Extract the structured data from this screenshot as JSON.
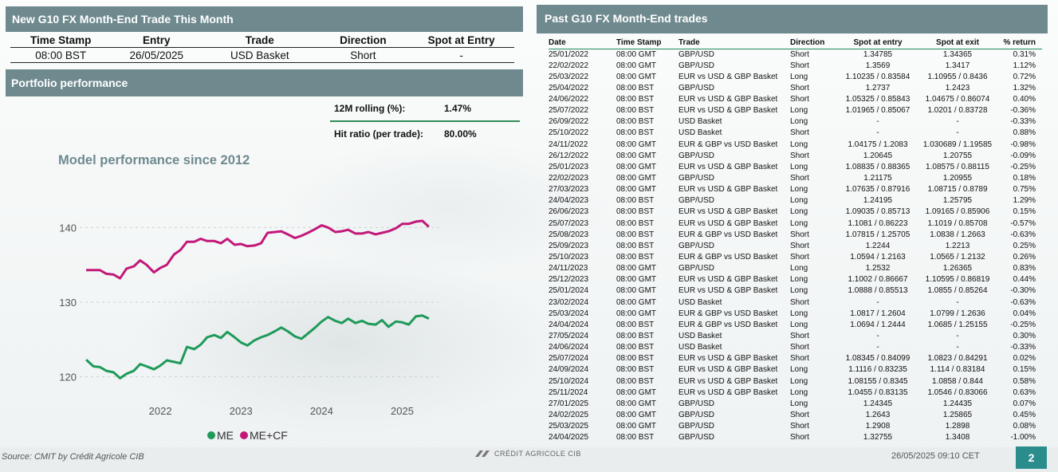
{
  "new_trade": {
    "title": "New G10 FX Month-End Trade This Month",
    "headers": [
      "Time Stamp",
      "Entry",
      "Trade",
      "Direction",
      "Spot at Entry"
    ],
    "row": [
      "08:00 BST",
      "26/05/2025",
      "USD Basket",
      "Short",
      "-"
    ]
  },
  "portfolio": {
    "title": "Portfolio performance",
    "rolling_label": "12M rolling (%):",
    "rolling_value": "1.47%",
    "hit_label": "Hit ratio (per trade):",
    "hit_value": "80.00%",
    "chart_title": "Model performance since 2012"
  },
  "chart_data": {
    "type": "line",
    "title": "Model performance since 2012",
    "x_ticks": [
      "2022",
      "2023",
      "2024",
      "2025"
    ],
    "y_ticks": [
      120,
      130,
      140
    ],
    "ylim": [
      116,
      144
    ],
    "xlim": [
      2021.0,
      2025.45
    ],
    "legend_position": "bottom",
    "series": [
      {
        "name": "ME",
        "color": "#1e9a5a",
        "x": [
          2021.08,
          2021.17,
          2021.25,
          2021.33,
          2021.42,
          2021.5,
          2021.58,
          2021.67,
          2021.75,
          2021.83,
          2021.92,
          2022.0,
          2022.08,
          2022.17,
          2022.25,
          2022.33,
          2022.42,
          2022.5,
          2022.58,
          2022.67,
          2022.75,
          2022.83,
          2022.92,
          2023.0,
          2023.08,
          2023.17,
          2023.25,
          2023.33,
          2023.42,
          2023.5,
          2023.58,
          2023.67,
          2023.75,
          2023.83,
          2023.92,
          2024.0,
          2024.08,
          2024.17,
          2024.25,
          2024.33,
          2024.42,
          2024.5,
          2024.58,
          2024.67,
          2024.75,
          2024.83,
          2024.92,
          2025.0,
          2025.08,
          2025.17,
          2025.25,
          2025.33
        ],
        "values": [
          122.3,
          121.4,
          121.3,
          120.8,
          120.6,
          119.8,
          120.4,
          120.8,
          121.7,
          121.4,
          121.0,
          121.5,
          122.2,
          122.0,
          121.8,
          124.0,
          123.7,
          124.3,
          125.3,
          125.6,
          125.2,
          126.0,
          125.3,
          124.6,
          124.2,
          124.9,
          125.3,
          125.6,
          126.1,
          126.6,
          126.1,
          125.4,
          125.1,
          125.8,
          126.6,
          127.4,
          128.0,
          127.5,
          127.2,
          127.8,
          127.2,
          127.5,
          127.1,
          127.0,
          127.6,
          126.7,
          127.4,
          127.3,
          127.0,
          128.1,
          128.2,
          127.8
        ]
      },
      {
        "name": "ME+CF",
        "color": "#c2187a",
        "x": [
          2021.08,
          2021.17,
          2021.25,
          2021.33,
          2021.42,
          2021.5,
          2021.58,
          2021.67,
          2021.75,
          2021.83,
          2021.92,
          2022.0,
          2022.08,
          2022.17,
          2022.25,
          2022.33,
          2022.42,
          2022.5,
          2022.58,
          2022.67,
          2022.75,
          2022.83,
          2022.92,
          2023.0,
          2023.08,
          2023.17,
          2023.25,
          2023.33,
          2023.42,
          2023.5,
          2023.58,
          2023.67,
          2023.75,
          2023.83,
          2023.92,
          2024.0,
          2024.08,
          2024.17,
          2024.25,
          2024.33,
          2024.42,
          2024.5,
          2024.58,
          2024.67,
          2024.75,
          2024.83,
          2024.92,
          2025.0,
          2025.08,
          2025.17,
          2025.25,
          2025.33
        ],
        "values": [
          134.3,
          134.3,
          134.3,
          133.8,
          133.7,
          133.2,
          134.5,
          134.8,
          135.6,
          135.0,
          134.0,
          134.6,
          135.0,
          136.4,
          137.0,
          138.1,
          138.1,
          138.5,
          138.2,
          138.2,
          137.9,
          138.5,
          137.7,
          137.8,
          137.5,
          137.6,
          137.9,
          139.3,
          139.4,
          139.5,
          139.1,
          138.6,
          138.9,
          139.3,
          139.8,
          140.3,
          140.0,
          139.4,
          139.5,
          139.7,
          139.2,
          139.2,
          139.4,
          139.1,
          139.3,
          139.5,
          139.9,
          140.5,
          140.5,
          140.8,
          140.9,
          140.1
        ]
      }
    ]
  },
  "legend": {
    "me": "ME",
    "mecf": "ME+CF"
  },
  "past_trades": {
    "title": "Past G10 FX Month-End trades",
    "headers": [
      "Date",
      "Time Stamp",
      "Trade",
      "Direction",
      "Spot at entry",
      "Spot at exit",
      "% return"
    ],
    "rows": [
      [
        "25/01/2022",
        "08:00 GMT",
        "GBP/USD",
        "Short",
        "1.34785",
        "1.34365",
        "0.31%"
      ],
      [
        "22/02/2022",
        "08:00 GMT",
        "GBP/USD",
        "Short",
        "1.3569",
        "1.3417",
        "1.12%"
      ],
      [
        "25/03/2022",
        "08:00 GMT",
        "EUR vs USD & GBP Basket",
        "Long",
        "1.10235 / 0.83584",
        "1.10955 / 0.8436",
        "0.72%"
      ],
      [
        "25/04/2022",
        "08:00 BST",
        "GBP/USD",
        "Short",
        "1.2737",
        "1.2423",
        "1.32%"
      ],
      [
        "24/06/2022",
        "08:00 BST",
        "EUR vs USD & GBP Basket",
        "Short",
        "1.05325 / 0.85843",
        "1.04675 / 0.86074",
        "0.40%"
      ],
      [
        "25/07/2022",
        "08:00 BST",
        "EUR vs USD & GBP Basket",
        "Long",
        "1.01965 / 0.85067",
        "1.0201 / 0.83728",
        "-0.36%"
      ],
      [
        "26/09/2022",
        "08:00 BST",
        "USD Basket",
        "Long",
        "-",
        "-",
        "-0.33%"
      ],
      [
        "25/10/2022",
        "08:00 BST",
        "USD Basket",
        "Short",
        "-",
        "-",
        "0.88%"
      ],
      [
        "24/11/2022",
        "08:00 GMT",
        "EUR & GBP vs USD Basket",
        "Long",
        "1.04175 / 1.2083",
        "1.030689 / 1.19585",
        "-0.98%"
      ],
      [
        "26/12/2022",
        "08:00 GMT",
        "GBP/USD",
        "Short",
        "1.20645",
        "1.20755",
        "-0.09%"
      ],
      [
        "25/01/2023",
        "08:00 GMT",
        "EUR vs USD & GBP Basket",
        "Long",
        "1.08835 / 0.88365",
        "1.08575 / 0.88115",
        "-0.25%"
      ],
      [
        "22/02/2023",
        "08:00 GMT",
        "GBP/USD",
        "Short",
        "1.21175",
        "1.20955",
        "0.18%"
      ],
      [
        "27/03/2023",
        "08:00 GMT",
        "EUR vs USD & GBP Basket",
        "Long",
        "1.07635 / 0.87916",
        "1.08715 / 0.8789",
        "0.75%"
      ],
      [
        "24/04/2023",
        "08:00 BST",
        "GBP/USD",
        "Long",
        "1.24195",
        "1.25795",
        "1.29%"
      ],
      [
        "26/06/2023",
        "08:00 BST",
        "EUR vs USD & GBP Basket",
        "Long",
        "1.09035 / 0.85713",
        "1.09165 / 0.85906",
        "0.15%"
      ],
      [
        "25/07/2023",
        "08:00 BST",
        "EUR vs USD & GBP Basket",
        "Long",
        "1.1081 / 0.86223",
        "1.1019 / 0.85708",
        "-0.57%"
      ],
      [
        "25/08/2023",
        "08:00 BST",
        "EUR & GBP vs USD Basket",
        "Short",
        "1.07815 / 1.25705",
        "1.0838 / 1.2663",
        "-0.63%"
      ],
      [
        "25/09/2023",
        "08:00 BST",
        "GBP/USD",
        "Short",
        "1.2244",
        "1.2213",
        "0.25%"
      ],
      [
        "25/10/2023",
        "08:00 BST",
        "EUR & GBP vs USD Basket",
        "Short",
        "1.0594 / 1.2163",
        "1.0565 / 1.2132",
        "0.26%"
      ],
      [
        "24/11/2023",
        "08:00 GMT",
        "GBP/USD",
        "Long",
        "1.2532",
        "1.26365",
        "0.83%"
      ],
      [
        "25/12/2023",
        "08:00 GMT",
        "EUR vs USD & GBP Basket",
        "Long",
        "1.1002 / 0.86667",
        "1.10595 / 0.86819",
        "0.44%"
      ],
      [
        "25/01/2024",
        "08:00 GMT",
        "EUR vs USD & GBP Basket",
        "Long",
        "1.0888 / 0.85513",
        "1.0855 / 0.85264",
        "-0.30%"
      ],
      [
        "23/02/2024",
        "08:00 GMT",
        "USD Basket",
        "Short",
        "-",
        "-",
        "-0.63%"
      ],
      [
        "25/03/2024",
        "08:00 GMT",
        "EUR & GBP vs USD Basket",
        "Long",
        "1.0817 / 1.2604",
        "1.0799 / 1.2636",
        "0.04%"
      ],
      [
        "24/04/2024",
        "08:00 BST",
        "EUR & GBP vs USD Basket",
        "Long",
        "1.0694 / 1.2444",
        "1.0685 / 1.25155",
        "-0.25%"
      ],
      [
        "27/05/2024",
        "08:00 BST",
        "USD Basket",
        "Short",
        "-",
        "-",
        "0.30%"
      ],
      [
        "24/06/2024",
        "08:00 BST",
        "USD Basket",
        "Short",
        "-",
        "-",
        "-0.33%"
      ],
      [
        "25/07/2024",
        "08:00 BST",
        "EUR vs USD & GBP Basket",
        "Short",
        "1.08345 / 0.84099",
        "1.0823 / 0.84291",
        "0.02%"
      ],
      [
        "24/09/2024",
        "08:00 BST",
        "EUR vs USD & GBP Basket",
        "Long",
        "1.1116 / 0.83235",
        "1.114 / 0.83184",
        "0.15%"
      ],
      [
        "25/10/2024",
        "08:00 BST",
        "EUR vs USD & GBP Basket",
        "Long",
        "1.08155 / 0.8345",
        "1.0858 / 0.844",
        "0.58%"
      ],
      [
        "25/11/2024",
        "08:00 GMT",
        "EUR vs USD & GBP Basket",
        "Long",
        "1.0455 / 0.83135",
        "1.0546 / 0.83066",
        "0.63%"
      ],
      [
        "27/01/2025",
        "08:00 GMT",
        "GBP/USD",
        "Long",
        "1.24345",
        "1.24435",
        "0.07%"
      ],
      [
        "24/02/2025",
        "08:00 GMT",
        "GBP/USD",
        "Short",
        "1.2643",
        "1.25865",
        "0.45%"
      ],
      [
        "25/03/2025",
        "08:00 GMT",
        "GBP/USD",
        "Short",
        "1.2908",
        "1.2898",
        "0.08%"
      ],
      [
        "24/04/2025",
        "08:00 BST",
        "GBP/USD",
        "Short",
        "1.32755",
        "1.3408",
        "-1.00%"
      ]
    ]
  },
  "footer": {
    "source": "Source: CMIT by Crédit Agricole CIB",
    "brand": "CRÉDIT AGRICOLE CIB",
    "datetime": "26/05/2025 09:10 CET",
    "page": "2"
  }
}
